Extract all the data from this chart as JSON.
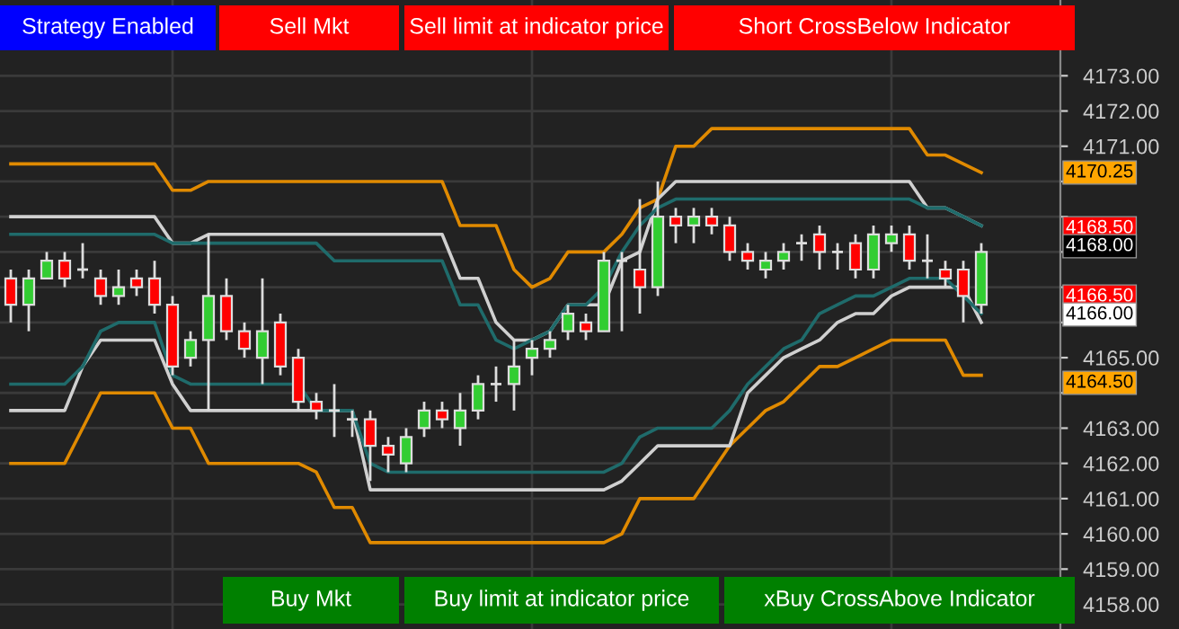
{
  "chart_data": {
    "type": "candlestick",
    "categories": [
      null,
      null,
      null,
      null,
      null,
      null,
      null,
      null,
      null,
      null,
      null,
      null,
      null,
      null,
      null,
      null,
      null,
      null,
      null,
      null,
      null,
      null,
      null,
      null,
      null,
      null,
      null,
      null,
      null,
      null,
      null,
      null,
      null,
      null,
      null,
      null,
      null,
      null,
      null,
      null,
      null,
      null,
      null,
      null,
      null,
      null,
      null,
      null,
      null,
      null,
      null,
      null,
      null,
      null,
      null
    ],
    "ohlc": [
      [
        4167.25,
        4167.5,
        4166,
        4166.5
      ],
      [
        4166.5,
        4167.5,
        4165.75,
        4167.25
      ],
      [
        4167.25,
        4168,
        4167.25,
        4167.75
      ],
      [
        4167.75,
        4168,
        4167,
        4167.25
      ],
      [
        4167.5,
        4168.25,
        4167.25,
        4167.5
      ],
      [
        4167.25,
        4167.5,
        4166.5,
        4166.75
      ],
      [
        4166.75,
        4167.5,
        4166.5,
        4167
      ],
      [
        4167.25,
        4167.5,
        4166.75,
        4167
      ],
      [
        4167.25,
        4167.75,
        4166.25,
        4166.5
      ],
      [
        4166.5,
        4166.75,
        4164.5,
        4164.75
      ],
      [
        4165,
        4165.75,
        4164.75,
        4165.5
      ],
      [
        4165.5,
        4168.5,
        4163.5,
        4166.75
      ],
      [
        4166.75,
        4167.25,
        4165.5,
        4165.75
      ],
      [
        4165.75,
        4166,
        4165,
        4165.25
      ],
      [
        4165,
        4167.25,
        4164.25,
        4165.75
      ],
      [
        4166,
        4166.25,
        4164.5,
        4164.75
      ],
      [
        4165,
        4165.25,
        4163.5,
        4163.75
      ],
      [
        4163.75,
        4164,
        4163.25,
        4163.5
      ],
      [
        4163.5,
        4164.25,
        4162.75,
        4163.5
      ],
      [
        4163.25,
        4163.5,
        4162.75,
        4163.25
      ],
      [
        4163.25,
        4163.5,
        4161.5,
        4162.5
      ],
      [
        4162.5,
        4162.75,
        4161.75,
        4162.25
      ],
      [
        4162,
        4163,
        4161.75,
        4162.75
      ],
      [
        4163,
        4163.75,
        4162.75,
        4163.5
      ],
      [
        4163.5,
        4163.75,
        4163,
        4163.25
      ],
      [
        4163,
        4164,
        4162.5,
        4163.5
      ],
      [
        4163.5,
        4164.5,
        4163.25,
        4164.25
      ],
      [
        4164.25,
        4164.75,
        4163.75,
        4164.25
      ],
      [
        4164.25,
        4165.5,
        4163.5,
        4164.75
      ],
      [
        4165,
        4165.5,
        4164.5,
        4165.25
      ],
      [
        4165.25,
        4165.75,
        4165,
        4165.5
      ],
      [
        4165.75,
        4166.5,
        4165.5,
        4166.25
      ],
      [
        4166,
        4166.25,
        4165.5,
        4165.75
      ],
      [
        4165.75,
        4168,
        4165.75,
        4167.75
      ],
      [
        4167.75,
        4168,
        4165.75,
        4167.75
      ],
      [
        4167.5,
        4169.5,
        4166.25,
        4167
      ],
      [
        4167,
        4170,
        4166.75,
        4169
      ],
      [
        4169,
        4169.25,
        4168.25,
        4168.75
      ],
      [
        4168.75,
        4169.25,
        4168.25,
        4169
      ],
      [
        4169,
        4169.25,
        4168.5,
        4168.75
      ],
      [
        4168.75,
        4169,
        4167.75,
        4168
      ],
      [
        4168,
        4168.25,
        4167.5,
        4167.75
      ],
      [
        4167.5,
        4168,
        4167.25,
        4167.75
      ],
      [
        4167.75,
        4168.25,
        4167.5,
        4168
      ],
      [
        4168.25,
        4168.5,
        4167.75,
        4168.25
      ],
      [
        4168.5,
        4168.75,
        4167.5,
        4168
      ],
      [
        4168,
        4168.25,
        4167.5,
        4168
      ],
      [
        4168.25,
        4168.5,
        4167.25,
        4167.5
      ],
      [
        4167.5,
        4168.75,
        4167.25,
        4168.5
      ],
      [
        4168.25,
        4168.75,
        4168,
        4168.5
      ],
      [
        4168.5,
        4168.75,
        4167.5,
        4167.75
      ],
      [
        4167.75,
        4168.5,
        4167.25,
        4167.75
      ],
      [
        4167.5,
        4167.75,
        4167,
        4167.25
      ],
      [
        4167.5,
        4167.75,
        4166,
        4166.75
      ],
      [
        4166.5,
        4168.25,
        4166.25,
        4168
      ]
    ],
    "series": [
      {
        "type": "line",
        "color": "#e08a00",
        "values": [
          4170.5,
          4170.5,
          4170.5,
          4170.5,
          4170.5,
          4170.5,
          4170.5,
          4170.5,
          4170.5,
          4169.75,
          4169.75,
          4170,
          4170,
          4170,
          4170,
          4170,
          4170,
          4170,
          4170,
          4170,
          4170,
          4170,
          4170,
          4170,
          4170,
          4168.75,
          4168.75,
          4168.75,
          4167.5,
          4167,
          4167.25,
          4168,
          4168,
          4168,
          4168.5,
          4169.25,
          4169.5,
          4171,
          4171,
          4171.5,
          4171.5,
          4171.5,
          4171.5,
          4171.5,
          4171.5,
          4171.5,
          4171.5,
          4171.5,
          4171.5,
          4171.5,
          4171.5,
          4170.75,
          4170.75,
          4170.5,
          4170.25
        ]
      },
      {
        "type": "line",
        "color": "#e08a00",
        "values": [
          4162,
          4162,
          4162,
          4162,
          4163,
          4164,
          4164,
          4164,
          4164,
          4163,
          4163,
          4162,
          4162,
          4162,
          4162,
          4162,
          4162,
          4161.75,
          4160.75,
          4160.75,
          4159.75,
          4159.75,
          4159.75,
          4159.75,
          4159.75,
          4159.75,
          4159.75,
          4159.75,
          4159.75,
          4159.75,
          4159.75,
          4159.75,
          4159.75,
          4159.75,
          4160,
          4161,
          4161,
          4161,
          4161,
          4161.75,
          4162.5,
          4163,
          4163.5,
          4163.75,
          4164.25,
          4164.75,
          4164.75,
          4165,
          4165.25,
          4165.5,
          4165.5,
          4165.5,
          4165.5,
          4164.5,
          4164.5
        ]
      },
      {
        "type": "line",
        "color": "#d0d0d0",
        "values": [
          4169,
          4169,
          4169,
          4169,
          4169,
          4169,
          4169,
          4169,
          4169,
          4168.25,
          4168.25,
          4168.5,
          4168.5,
          4168.5,
          4168.5,
          4168.5,
          4168.5,
          4168.5,
          4168.5,
          4168.5,
          4168.5,
          4168.5,
          4168.5,
          4168.5,
          4168.5,
          4167.25,
          4167.25,
          4166,
          4165.5,
          4165.5,
          4165.75,
          4166.5,
          4166.5,
          4166.5,
          4167.75,
          4168,
          4169.5,
          4170,
          4170,
          4170,
          4170,
          4170,
          4170,
          4170,
          4170,
          4170,
          4170,
          4170,
          4170,
          4170,
          4170,
          4169.25,
          4169.25,
          4169,
          4168.75
        ]
      },
      {
        "type": "line",
        "color": "#d0d0d0",
        "values": [
          4163.5,
          4163.5,
          4163.5,
          4163.5,
          4164.75,
          4165.5,
          4165.5,
          4165.5,
          4165.5,
          4164.25,
          4163.5,
          4163.5,
          4163.5,
          4163.5,
          4163.5,
          4163.5,
          4163.5,
          4163.5,
          4163.5,
          4163.5,
          4161.25,
          4161.25,
          4161.25,
          4161.25,
          4161.25,
          4161.25,
          4161.25,
          4161.25,
          4161.25,
          4161.25,
          4161.25,
          4161.25,
          4161.25,
          4161.25,
          4161.5,
          4162,
          4162.5,
          4162.5,
          4162.5,
          4162.5,
          4162.5,
          4164,
          4164.5,
          4165,
          4165.25,
          4165.5,
          4166,
          4166.25,
          4166.25,
          4166.75,
          4167,
          4167,
          4167,
          4167,
          4166
        ]
      },
      {
        "type": "line",
        "color": "#1f6b6b",
        "values": [
          4168.5,
          4168.5,
          4168.5,
          4168.5,
          4168.5,
          4168.5,
          4168.5,
          4168.5,
          4168.5,
          4168.25,
          4168.25,
          4168.25,
          4168.25,
          4168.25,
          4168.25,
          4168.25,
          4168.25,
          4168.25,
          4167.75,
          4167.75,
          4167.75,
          4167.75,
          4167.75,
          4167.75,
          4167.75,
          4166.5,
          4166.5,
          4165.5,
          4165.25,
          4165.5,
          4165.75,
          4166.5,
          4166.5,
          4167,
          4168,
          4168.75,
          4169.25,
          4169.5,
          4169.5,
          4169.5,
          4169.5,
          4169.5,
          4169.5,
          4169.5,
          4169.5,
          4169.5,
          4169.5,
          4169.5,
          4169.5,
          4169.5,
          4169.5,
          4169.25,
          4169.25,
          4169,
          4168.75
        ]
      },
      {
        "type": "line",
        "color": "#1f6b6b",
        "values": [
          4164.25,
          4164.25,
          4164.25,
          4164.25,
          4164.75,
          4165.75,
          4166,
          4166,
          4166,
          4164.5,
          4164.25,
          4164.25,
          4164.25,
          4164.25,
          4164.25,
          4164.25,
          4164.25,
          4163.5,
          4163.5,
          4163.5,
          4162,
          4161.75,
          4161.75,
          4161.75,
          4161.75,
          4161.75,
          4161.75,
          4161.75,
          4161.75,
          4161.75,
          4161.75,
          4161.75,
          4161.75,
          4161.75,
          4162,
          4162.75,
          4163,
          4163,
          4163,
          4163,
          4163.5,
          4164.25,
          4164.75,
          4165.25,
          4165.5,
          4166.25,
          4166.5,
          4166.75,
          4166.75,
          4167,
          4167.25,
          4167.25,
          4167.25,
          4166.75,
          4166.25
        ]
      }
    ],
    "ylim": [
      4157.3,
      4175.15
    ],
    "yticks": [
      {
        "value": 4158,
        "label": "4158.00"
      },
      {
        "value": 4159,
        "label": "4159.00"
      },
      {
        "value": 4160,
        "label": "4160.00"
      },
      {
        "value": 4161,
        "label": "4161.00"
      },
      {
        "value": 4162,
        "label": "4162.00"
      },
      {
        "value": 4163,
        "label": "4163.00"
      },
      {
        "value": 4164,
        "label": null
      },
      {
        "value": 4165,
        "label": "4165.00"
      },
      {
        "value": 4166,
        "label": null
      },
      {
        "value": 4167,
        "label": null
      },
      {
        "value": 4168,
        "label": null
      },
      {
        "value": 4169,
        "label": null
      },
      {
        "value": 4170,
        "label": null
      },
      {
        "value": 4171,
        "label": "4171.00"
      },
      {
        "value": 4172,
        "label": "4172.00"
      },
      {
        "value": 4173,
        "label": "4173.00"
      }
    ],
    "annotations": [
      "Strategy Enabled",
      "Sell Mkt",
      "Sell limit at indicator price",
      "Short CrossBelow Indicator",
      "Buy Mkt",
      "Buy limit at indicator price",
      "xBuy CrossAbove Indicator",
      "4170.25",
      "4168.50",
      "4168.00",
      "4166.50",
      "4166.00",
      "4164.50"
    ],
    "grid": true,
    "legend": false
  }
}
